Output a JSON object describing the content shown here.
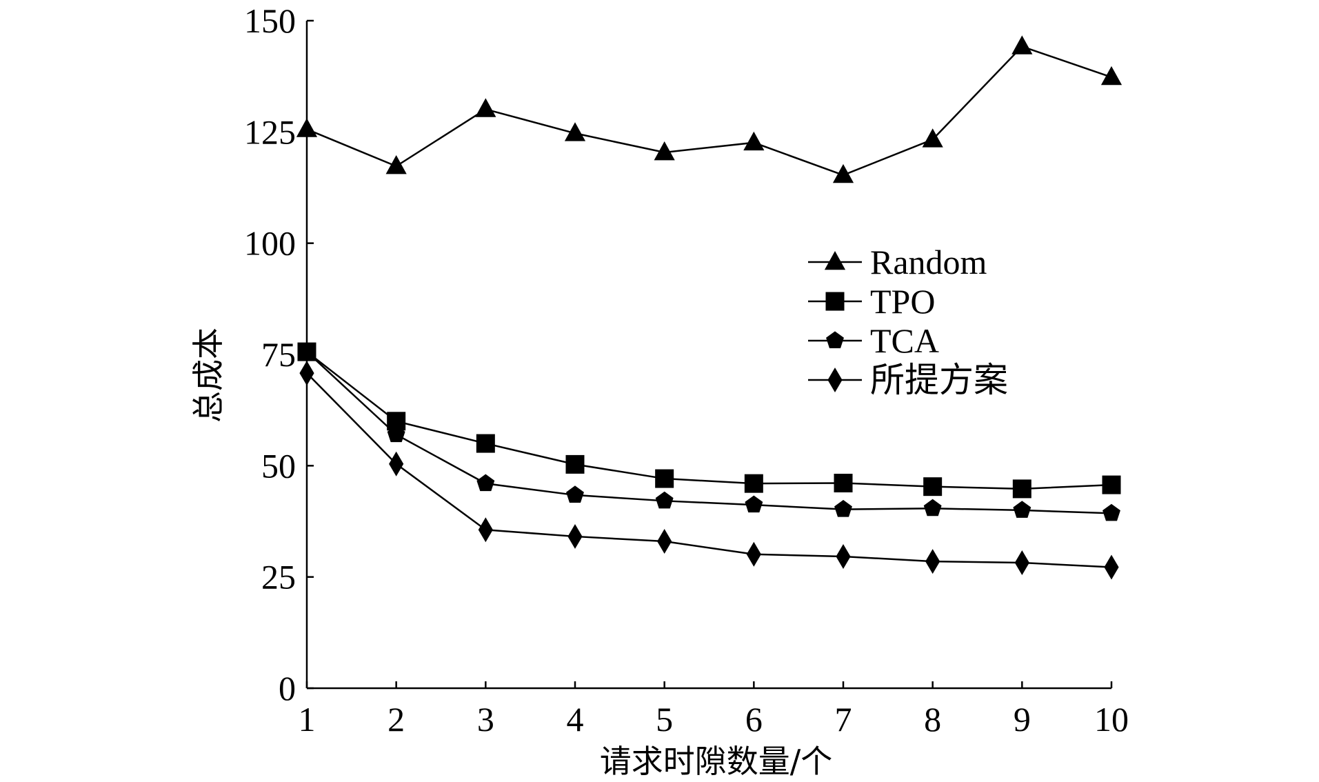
{
  "chart_data": {
    "type": "line",
    "title": "",
    "xlabel": "请求时隙数量/个",
    "ylabel": "总成本",
    "x": [
      1,
      2,
      3,
      4,
      5,
      6,
      7,
      8,
      9,
      10
    ],
    "xlim": [
      1,
      10
    ],
    "ylim": [
      0,
      150
    ],
    "x_ticks": [
      "1",
      "2",
      "3",
      "4",
      "5",
      "6",
      "7",
      "8",
      "9",
      "10"
    ],
    "y_ticks": [
      "0",
      "25",
      "50",
      "75",
      "100",
      "125",
      "150"
    ],
    "grid": false,
    "legend_position": "center-right",
    "series": [
      {
        "name": "Random",
        "marker": "triangle",
        "color": "#000000",
        "values": [
          125.6,
          117.3,
          130.1,
          124.7,
          120.4,
          122.6,
          115.3,
          123.3,
          144.2,
          137.3
        ]
      },
      {
        "name": "TPO",
        "marker": "square",
        "color": "#000000",
        "values": [
          75.6,
          60.0,
          55.0,
          50.3,
          47.1,
          46.0,
          46.1,
          45.3,
          44.8,
          45.7
        ]
      },
      {
        "name": "TCA",
        "marker": "pentagon",
        "color": "#000000",
        "values": [
          75.6,
          57.0,
          46.0,
          43.4,
          42.1,
          41.2,
          40.2,
          40.4,
          40.0,
          39.3
        ]
      },
      {
        "name": "所提方案",
        "marker": "diamond",
        "color": "#000000",
        "values": [
          70.8,
          50.4,
          35.6,
          34.1,
          33.0,
          30.1,
          29.6,
          28.5,
          28.2,
          27.2
        ]
      }
    ]
  }
}
